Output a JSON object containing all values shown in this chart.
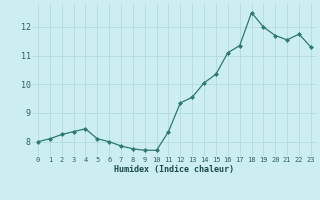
{
  "x": [
    0,
    1,
    2,
    3,
    4,
    5,
    6,
    7,
    8,
    9,
    10,
    11,
    12,
    13,
    14,
    15,
    16,
    17,
    18,
    19,
    20,
    21,
    22,
    23
  ],
  "y": [
    8.0,
    8.1,
    8.25,
    8.35,
    8.45,
    8.1,
    8.0,
    7.85,
    7.75,
    7.7,
    7.7,
    8.35,
    9.35,
    9.55,
    10.05,
    10.35,
    11.1,
    11.35,
    12.5,
    12.0,
    11.7,
    11.55,
    11.75,
    11.3
  ],
  "xlabel": "Humidex (Indice chaleur)",
  "bg_color": "#cceef0",
  "line_color": "#2d7a6e",
  "marker_color": "#2d7a6e",
  "grid_color": "#aad8d8",
  "tick_label_color": "#2d6060",
  "xlabel_color": "#1a4a4a",
  "ylim": [
    7.5,
    12.8
  ],
  "yticks": [
    8,
    9,
    10,
    11,
    12
  ],
  "xticks": [
    0,
    1,
    2,
    3,
    4,
    5,
    6,
    7,
    8,
    9,
    10,
    11,
    12,
    13,
    14,
    15,
    16,
    17,
    18,
    19,
    20,
    21,
    22,
    23
  ]
}
